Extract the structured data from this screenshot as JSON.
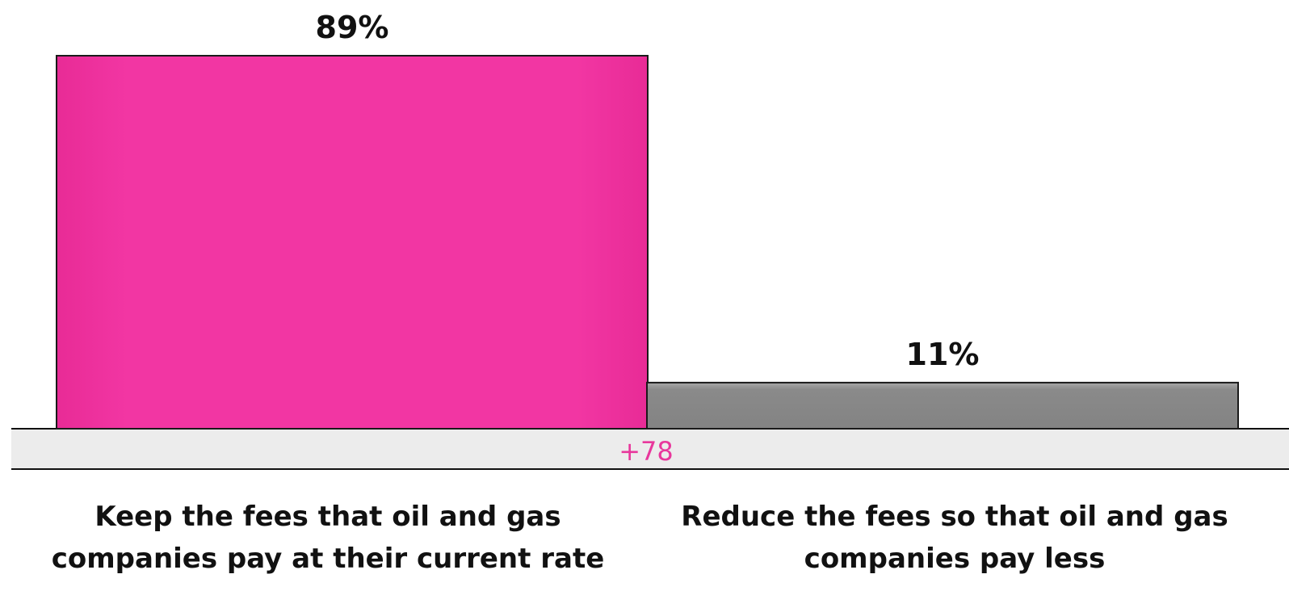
{
  "chart_data": {
    "type": "bar",
    "categories": [
      "Keep the fees that oil and gas companies pay at their current rate",
      "Reduce the fees so that oil and gas companies pay less"
    ],
    "values": [
      89,
      11
    ],
    "data_labels": [
      "89%",
      "11%"
    ],
    "colors": [
      "#f236a3",
      "#858585"
    ],
    "difference_label": "+78",
    "difference_color": "#e8379c",
    "ylim": [
      0,
      100
    ],
    "grid": false,
    "legend": "none"
  }
}
